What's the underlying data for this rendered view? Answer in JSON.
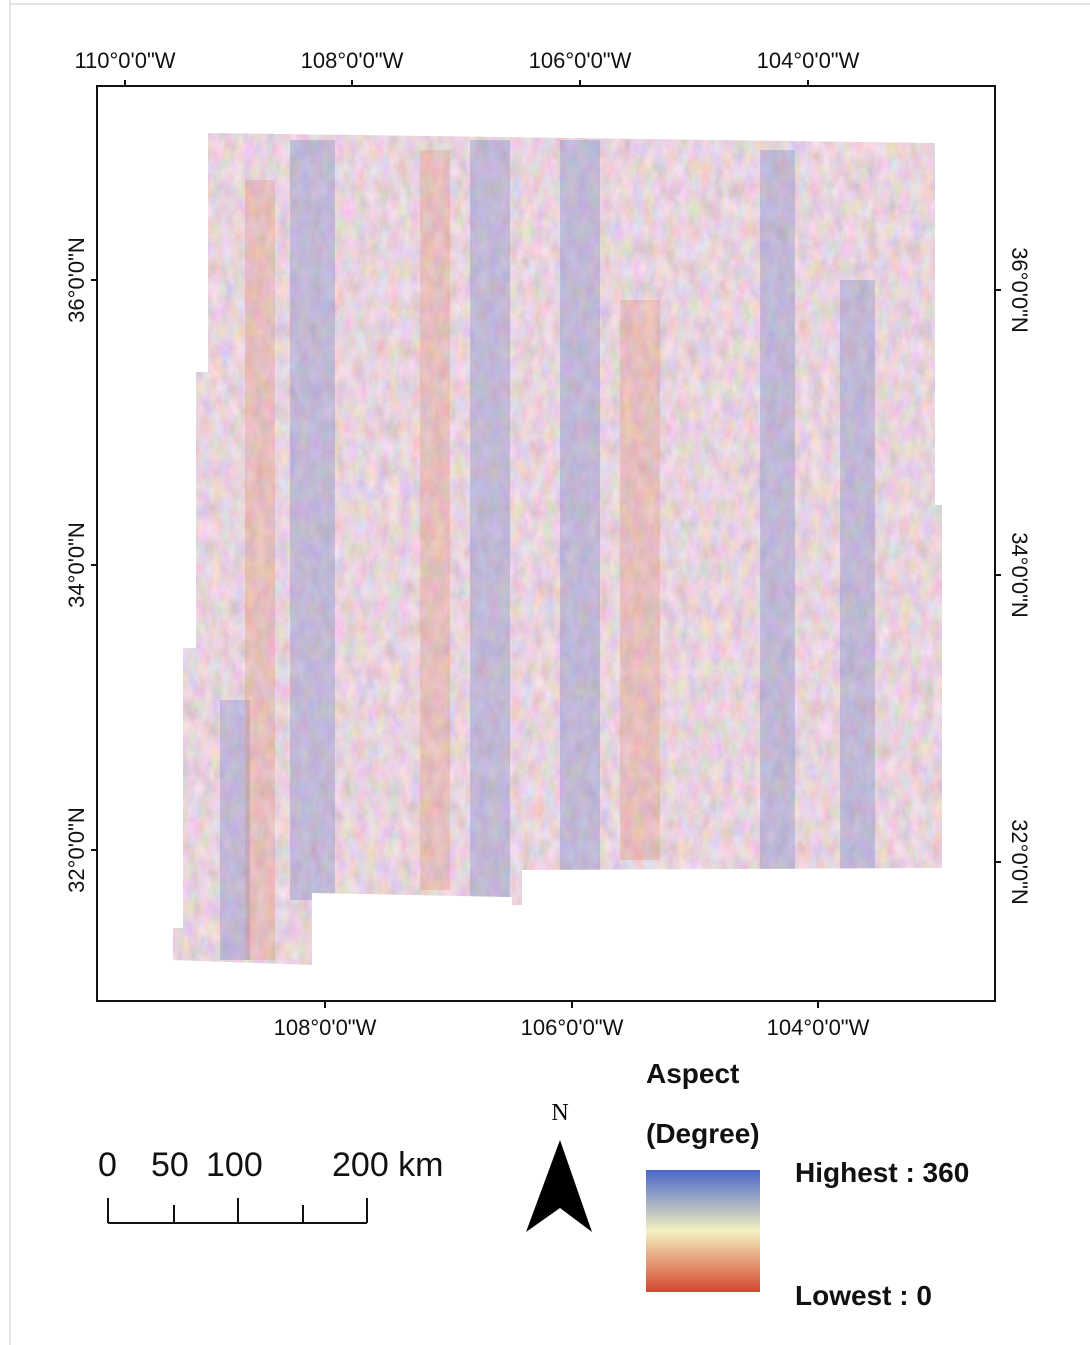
{
  "graticule": {
    "top": [
      "110°0'0\"W",
      "108°0'0\"W",
      "106°0'0\"W",
      "104°0'0\"W"
    ],
    "bottom": [
      "108°0'0\"W",
      "106°0'0\"W",
      "104°0'0\"W"
    ],
    "left": [
      "36°0'0\"N",
      "34°0'0\"N",
      "32°0'0\"N"
    ],
    "right": [
      "36°0'0\"N",
      "34°0'0\"N",
      "32°0'0\"N"
    ]
  },
  "scale_bar": {
    "labels": [
      "0",
      "50",
      "100",
      "200 km"
    ]
  },
  "north_arrow": {
    "label": "N"
  },
  "legend": {
    "title": "Aspect",
    "subtitle": "(Degree)",
    "high": "Highest : 360",
    "low": "Lowest : 0"
  }
}
